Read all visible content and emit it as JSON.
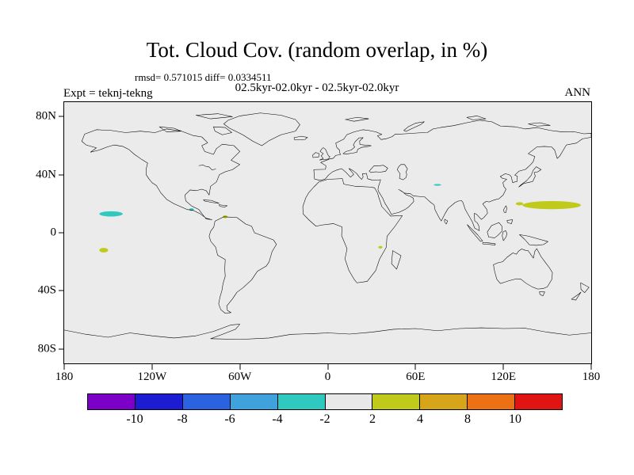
{
  "title": "Tot. Cloud Cov. (random overlap, in %)",
  "stats": "rmsd= 0.571015 diff= 0.0334511",
  "header": {
    "expt": "Expt = teknj-tekng",
    "case": "02.5kyr-02.0kyr - 02.5kyr-02.0kyr",
    "season": "ANN"
  },
  "chart_data": {
    "type": "heatmap",
    "title": "Tot. Cloud Cov. (random overlap, in %)",
    "subtitle": "02.5kyr-02.0kyr - 02.5kyr-02.0kyr",
    "experiment": "teknj-tekng",
    "season": "ANN",
    "units": "%",
    "rmsd": 0.571015,
    "diff": 0.0334511,
    "projection": "equirectangular world map",
    "lon_range": [
      -180,
      180
    ],
    "lat_range": [
      -90,
      90
    ],
    "background_value_range": "-2 to 2",
    "lat_ticks": [
      {
        "value": 80,
        "label": "80N"
      },
      {
        "value": 40,
        "label": "40N"
      },
      {
        "value": 0,
        "label": "0"
      },
      {
        "value": -40,
        "label": "40S"
      },
      {
        "value": -80,
        "label": "80S"
      }
    ],
    "lon_ticks": [
      {
        "value": -180,
        "label": "180"
      },
      {
        "value": -120,
        "label": "120W"
      },
      {
        "value": -60,
        "label": "60W"
      },
      {
        "value": 0,
        "label": "0"
      },
      {
        "value": 60,
        "label": "60E"
      },
      {
        "value": 120,
        "label": "120E"
      },
      {
        "value": 180,
        "label": "180"
      }
    ],
    "colorbar": {
      "colors": [
        "#7d00c8",
        "#1c1cd2",
        "#2b62e0",
        "#3fa2dc",
        "#2fc9c0",
        "#e8e8e8",
        "#bfca1a",
        "#d6a51a",
        "#ec7014",
        "#e11414"
      ],
      "boundary_labels": [
        "-10",
        "-8",
        "-6",
        "-4",
        "-2",
        "2",
        "4",
        "8",
        "10"
      ]
    },
    "anomalies": [
      {
        "lon": -148,
        "lat": 13,
        "rx": 8,
        "ry": 1.8,
        "value_range": "-4 to -2",
        "color": "#2fc9c0"
      },
      {
        "lon": -93,
        "lat": 16,
        "rx": 1.6,
        "ry": 0.9,
        "value_range": "-4 to -2",
        "color": "#2fc9c0"
      },
      {
        "lon": -153,
        "lat": -12,
        "rx": 3,
        "ry": 1.6,
        "value_range": "2 to 4",
        "color": "#bfca1a"
      },
      {
        "lon": -70,
        "lat": 11,
        "rx": 1.6,
        "ry": 1,
        "value_range": "2 to 4",
        "color": "#bfca1a"
      },
      {
        "lon": 36,
        "lat": -10,
        "rx": 1.4,
        "ry": 0.9,
        "value_range": "2 to 4",
        "color": "#bfca1a"
      },
      {
        "lon": 75,
        "lat": 33,
        "rx": 2.6,
        "ry": 0.6,
        "value_range": "-4 to -2",
        "color": "#2fc9c0"
      },
      {
        "lon": 153,
        "lat": 19,
        "rx": 20,
        "ry": 2.8,
        "value_range": "2 to 4",
        "color": "#bfca1a"
      },
      {
        "lon": 131,
        "lat": 20,
        "rx": 2.5,
        "ry": 1.1,
        "value_range": "2 to 4",
        "color": "#bfca1a"
      }
    ]
  }
}
